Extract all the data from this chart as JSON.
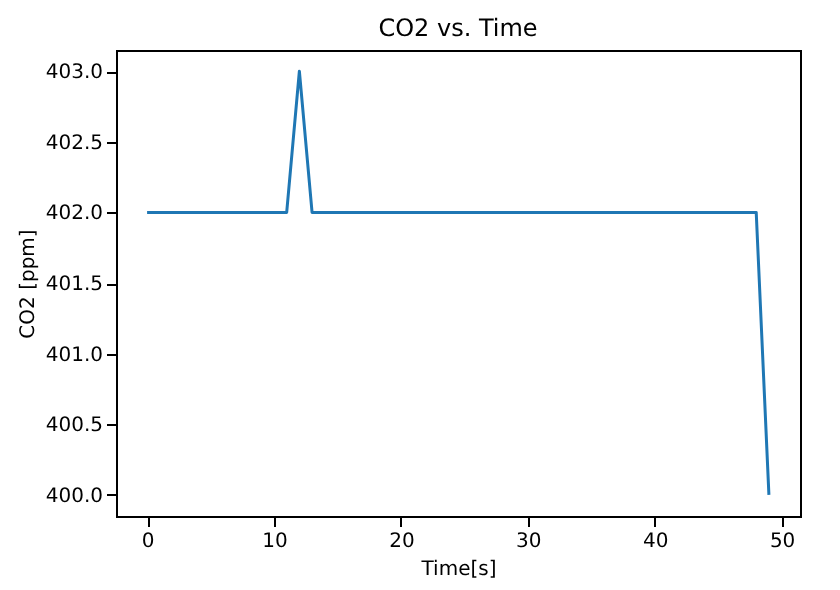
{
  "chart_data": {
    "type": "line",
    "title": "CO2 vs. Time",
    "xlabel": "Time[s]",
    "ylabel": "CO2 [ppm]",
    "x": [
      0,
      11,
      12,
      13,
      48,
      49
    ],
    "series": [
      {
        "color": "#1f77b4",
        "values": [
          402,
          402,
          403,
          402,
          402,
          400
        ]
      }
    ],
    "xlim": [
      -2.45,
      51.45
    ],
    "ylim": [
      399.85,
      403.15
    ],
    "xticks": [
      0,
      10,
      20,
      30,
      40,
      50
    ],
    "yticks": [
      {
        "value": 400,
        "label": "400.0"
      },
      {
        "value": 400.5,
        "label": "400.5"
      },
      {
        "value": 401,
        "label": "401.0"
      },
      {
        "value": 401.5,
        "label": "401.5"
      },
      {
        "value": 402,
        "label": "402.0"
      },
      {
        "value": 402.5,
        "label": "402.5"
      },
      {
        "value": 403,
        "label": "403.0"
      }
    ],
    "grid": false,
    "marker": "none",
    "line_style": "solid"
  }
}
